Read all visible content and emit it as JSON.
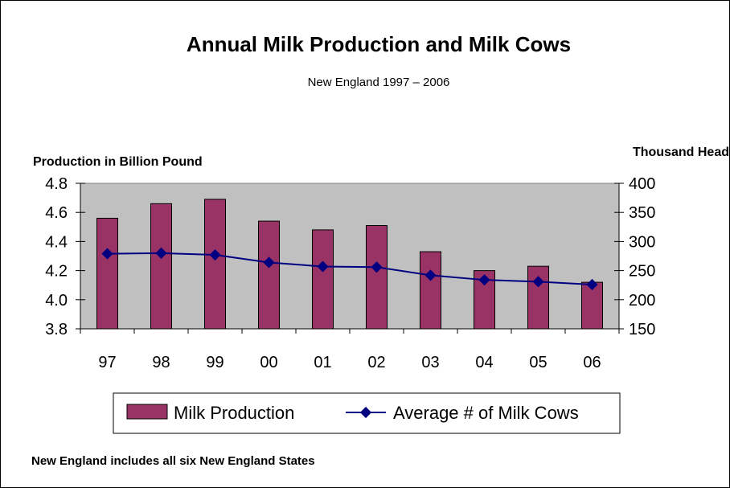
{
  "chart_data": {
    "type": "bar",
    "title": "Annual Milk Production and Milk Cows",
    "subtitle": "New England 1997 – 2006",
    "ylabel_left": "Production in Billion Pound",
    "ylabel_right": "Thousand Head",
    "categories": [
      "97",
      "98",
      "99",
      "00",
      "01",
      "02",
      "03",
      "04",
      "05",
      "06"
    ],
    "y_left_ticks": [
      "3.8",
      "4.0",
      "4.2",
      "4.4",
      "4.6",
      "4.8"
    ],
    "y_right_ticks": [
      "150",
      "200",
      "250",
      "300",
      "350",
      "400"
    ],
    "ylim_left": [
      3.8,
      4.8
    ],
    "ylim_right": [
      150,
      400
    ],
    "grid": false,
    "legend_position": "bottom",
    "series": [
      {
        "name": "Milk Production",
        "type": "bar",
        "axis": "left",
        "color": "#993366",
        "values": [
          4.56,
          4.66,
          4.69,
          4.54,
          4.48,
          4.51,
          4.33,
          4.2,
          4.23,
          4.12
        ]
      },
      {
        "name": "Average # of Milk Cows",
        "type": "line",
        "axis": "right",
        "color": "#000080",
        "values": [
          279,
          280,
          277,
          264,
          257,
          256,
          242,
          234,
          231,
          226
        ]
      }
    ],
    "plot_background": "#c0c0c0",
    "footnote": "New England includes all six New England States"
  }
}
